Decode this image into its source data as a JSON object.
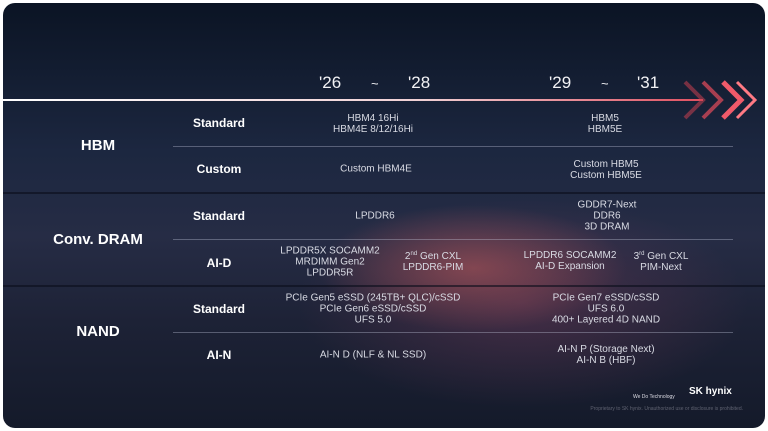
{
  "timeline": {
    "period1": {
      "start": "'26",
      "sep": "~",
      "end": "'28"
    },
    "period2": {
      "start": "'29",
      "sep": "~",
      "end": "'31"
    }
  },
  "groups": [
    {
      "label": "HBM",
      "rows": [
        {
          "label": "Standard",
          "col1": [
            "HBM4 16Hi",
            "HBM4E 8/12/16Hi"
          ],
          "col2": [
            "HBM5",
            "HBM5E"
          ]
        },
        {
          "label": "Custom",
          "col1": [
            "Custom HBM4E"
          ],
          "col2": [
            "Custom HBM5",
            "Custom HBM5E"
          ]
        }
      ]
    },
    {
      "label": "Conv. DRAM",
      "rows": [
        {
          "label": "Standard",
          "col1": [
            "LPDDR6"
          ],
          "col2": [
            "GDDR7-Next",
            "DDR6",
            "3D DRAM"
          ]
        },
        {
          "label": "AI-D",
          "col1a": [
            "LPDDR5X SOCAMM2",
            "MRDIMM Gen2",
            "LPDDR5R"
          ],
          "col1b": {
            "ord": "2",
            "sup": "nd",
            "line1": " Gen CXL",
            "line2": "LPDDR6-PIM"
          },
          "col2a": [
            "LPDDR6 SOCAMM2",
            "AI-D Expansion"
          ],
          "col2b": {
            "ord": "3",
            "sup": "rd",
            "line1": " Gen CXL",
            "line2": "PIM-Next"
          }
        }
      ]
    },
    {
      "label": "NAND",
      "rows": [
        {
          "label": "Standard",
          "col1": [
            "PCIe Gen5 eSSD (245TB+ QLC)/cSSD",
            "PCIe Gen6 eSSD/cSSD",
            "UFS 5.0"
          ],
          "col2": [
            "PCIe Gen7 eSSD/cSSD",
            "UFS 6.0",
            "400+ Layered 4D NAND"
          ]
        },
        {
          "label": "AI-N",
          "col1": [
            "AI-N D (NLF & NL SSD)"
          ],
          "col2": [
            "AI-N P (Storage Next)",
            "AI-N B (HBF)"
          ]
        }
      ]
    }
  ],
  "footer": {
    "tagline": "We Do Technology",
    "brand": "SK hynix",
    "notice": "Proprietary to SK hynix. Unauthorized use or disclosure is prohibited."
  },
  "colors": {
    "arrow": "#e04658",
    "background": "#1c2740"
  }
}
